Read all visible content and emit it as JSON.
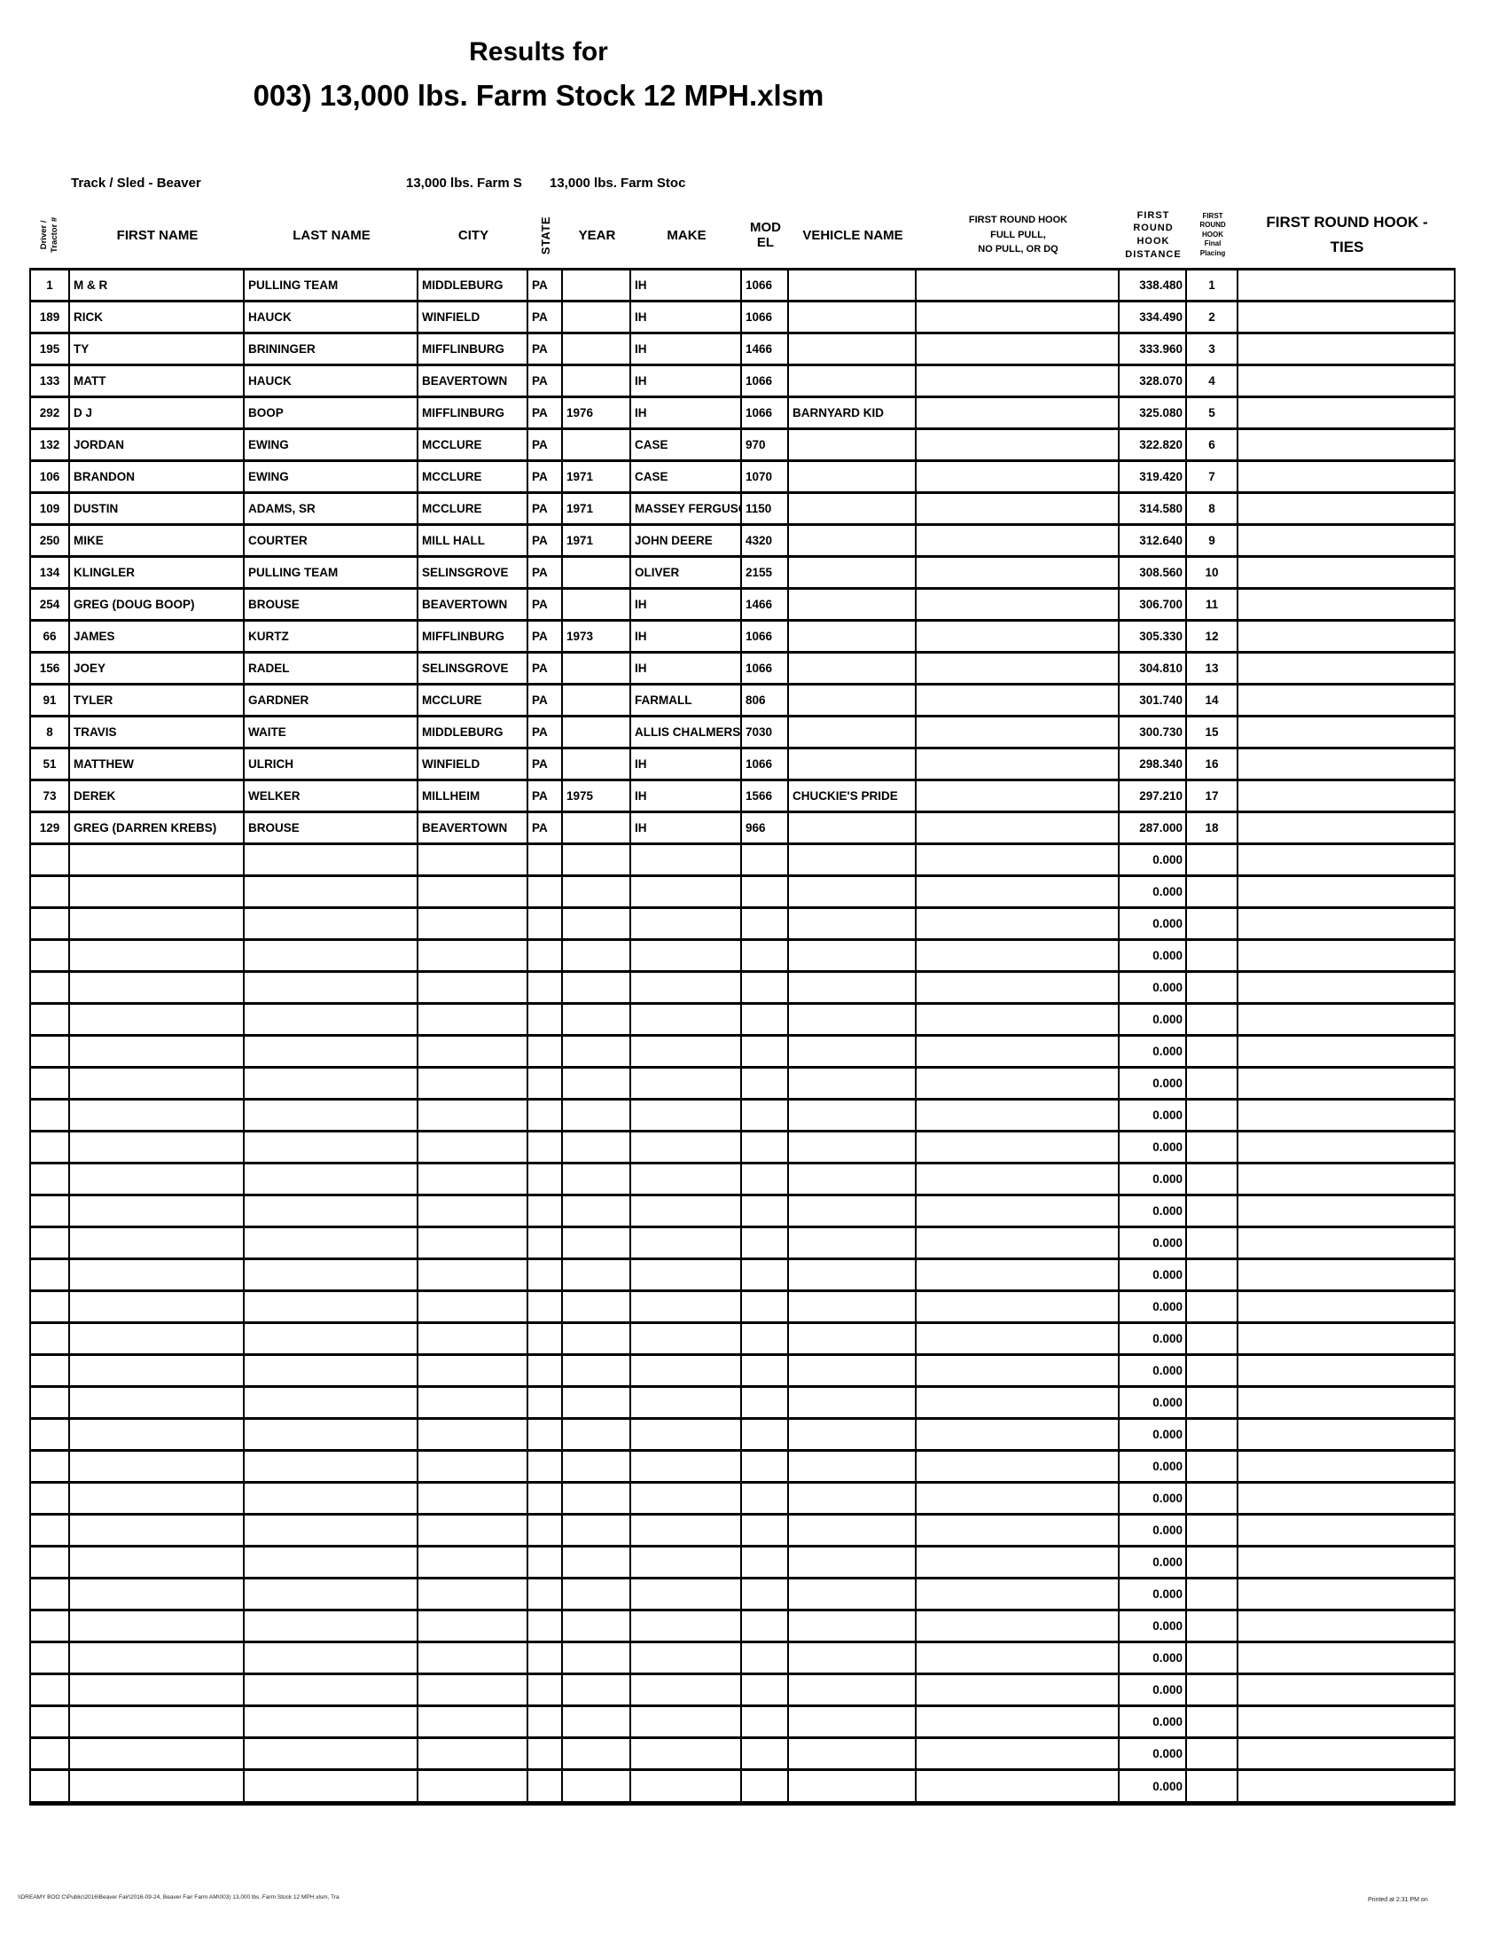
{
  "title": {
    "line1": "Results for",
    "line2": "003) 13,000 lbs. Farm Stock 12 MPH.xlsm"
  },
  "info": {
    "track_sled": "Track / Sled - Beaver",
    "class_cell_1": "13,000 lbs. Farm S",
    "class_cell_2": "13,000 lbs. Farm Stoc"
  },
  "table": {
    "headers": {
      "driver_line1": "Driver /",
      "driver_line2": "Tractor #",
      "first_name": "FIRST NAME",
      "last_name": "LAST NAME",
      "city": "CITY",
      "state": "STATE",
      "year": "YEAR",
      "make": "MAKE",
      "model_line1": "MOD",
      "model_line2": "EL",
      "vehicle_name": "VEHICLE NAME",
      "full_pull_line1": "FIRST ROUND HOOK",
      "full_pull_line2": "FULL PULL,",
      "full_pull_line3": "NO PULL, OR DQ",
      "distance_line1": "FIRST",
      "distance_line2": "ROUND",
      "distance_line3": "HOOK",
      "distance_line4": "DISTANCE",
      "placing_line1": "FIRST",
      "placing_line2": "ROUND",
      "placing_line3": "HOOK",
      "placing_line4": "Final",
      "placing_line5": "Placing",
      "ties_line1": "FIRST ROUND HOOK -",
      "ties_line2": "TIES"
    },
    "rows": [
      {
        "num": "1",
        "first": "M & R",
        "last": "PULLING TEAM",
        "city": "MIDDLEBURG",
        "state": "PA",
        "year": "",
        "make": "IH",
        "model": "1066",
        "vehicle": "",
        "full_pull": "",
        "distance": "338.480",
        "placing": "1",
        "ties": ""
      },
      {
        "num": "189",
        "first": "RICK",
        "last": "HAUCK",
        "city": "WINFIELD",
        "state": "PA",
        "year": "",
        "make": "IH",
        "model": "1066",
        "vehicle": "",
        "full_pull": "",
        "distance": "334.490",
        "placing": "2",
        "ties": ""
      },
      {
        "num": "195",
        "first": "TY",
        "last": "BRININGER",
        "city": "MIFFLINBURG",
        "state": "PA",
        "year": "",
        "make": "IH",
        "model": "1466",
        "vehicle": "",
        "full_pull": "",
        "distance": "333.960",
        "placing": "3",
        "ties": ""
      },
      {
        "num": "133",
        "first": "MATT",
        "last": "HAUCK",
        "city": "BEAVERTOWN",
        "state": "PA",
        "year": "",
        "make": "IH",
        "model": "1066",
        "vehicle": "",
        "full_pull": "",
        "distance": "328.070",
        "placing": "4",
        "ties": ""
      },
      {
        "num": "292",
        "first": "D J",
        "last": "BOOP",
        "city": "MIFFLINBURG",
        "state": "PA",
        "year": "1976",
        "make": "IH",
        "model": "1066",
        "vehicle": "BARNYARD KID",
        "full_pull": "",
        "distance": "325.080",
        "placing": "5",
        "ties": ""
      },
      {
        "num": "132",
        "first": "JORDAN",
        "last": "EWING",
        "city": "MCCLURE",
        "state": "PA",
        "year": "",
        "make": "CASE",
        "model": "970",
        "vehicle": "",
        "full_pull": "",
        "distance": "322.820",
        "placing": "6",
        "ties": ""
      },
      {
        "num": "106",
        "first": "BRANDON",
        "last": "EWING",
        "city": "MCCLURE",
        "state": "PA",
        "year": "1971",
        "make": "CASE",
        "model": "1070",
        "vehicle": "",
        "full_pull": "",
        "distance": "319.420",
        "placing": "7",
        "ties": ""
      },
      {
        "num": "109",
        "first": "DUSTIN",
        "last": "ADAMS, SR",
        "city": "MCCLURE",
        "state": "PA",
        "year": "1971",
        "make": "MASSEY FERGUSON",
        "model": "1150",
        "vehicle": "",
        "full_pull": "",
        "distance": "314.580",
        "placing": "8",
        "ties": ""
      },
      {
        "num": "250",
        "first": "MIKE",
        "last": "COURTER",
        "city": "MILL HALL",
        "state": "PA",
        "year": "1971",
        "make": "JOHN DEERE",
        "model": "4320",
        "vehicle": "",
        "full_pull": "",
        "distance": "312.640",
        "placing": "9",
        "ties": ""
      },
      {
        "num": "134",
        "first": "KLINGLER",
        "last": "PULLING TEAM",
        "city": "SELINSGROVE",
        "state": "PA",
        "year": "",
        "make": "OLIVER",
        "model": "2155",
        "vehicle": "",
        "full_pull": "",
        "distance": "308.560",
        "placing": "10",
        "ties": ""
      },
      {
        "num": "254",
        "first": "GREG (DOUG BOOP)",
        "last": "BROUSE",
        "city": "BEAVERTOWN",
        "state": "PA",
        "year": "",
        "make": "IH",
        "model": "1466",
        "vehicle": "",
        "full_pull": "",
        "distance": "306.700",
        "placing": "11",
        "ties": ""
      },
      {
        "num": "66",
        "first": "JAMES",
        "last": "KURTZ",
        "city": "MIFFLINBURG",
        "state": "PA",
        "year": "1973",
        "make": "IH",
        "model": "1066",
        "vehicle": "",
        "full_pull": "",
        "distance": "305.330",
        "placing": "12",
        "ties": ""
      },
      {
        "num": "156",
        "first": "JOEY",
        "last": "RADEL",
        "city": "SELINSGROVE",
        "state": "PA",
        "year": "",
        "make": "IH",
        "model": "1066",
        "vehicle": "",
        "full_pull": "",
        "distance": "304.810",
        "placing": "13",
        "ties": ""
      },
      {
        "num": "91",
        "first": "TYLER",
        "last": "GARDNER",
        "city": "MCCLURE",
        "state": "PA",
        "year": "",
        "make": "FARMALL",
        "model": "806",
        "vehicle": "",
        "full_pull": "",
        "distance": "301.740",
        "placing": "14",
        "ties": ""
      },
      {
        "num": "8",
        "first": "TRAVIS",
        "last": "WAITE",
        "city": "MIDDLEBURG",
        "state": "PA",
        "year": "",
        "make": "ALLIS CHALMERS",
        "model": "7030",
        "vehicle": "",
        "full_pull": "",
        "distance": "300.730",
        "placing": "15",
        "ties": ""
      },
      {
        "num": "51",
        "first": "MATTHEW",
        "last": "ULRICH",
        "city": "WINFIELD",
        "state": "PA",
        "year": "",
        "make": "IH",
        "model": "1066",
        "vehicle": "",
        "full_pull": "",
        "distance": "298.340",
        "placing": "16",
        "ties": ""
      },
      {
        "num": "73",
        "first": "DEREK",
        "last": "WELKER",
        "city": "MILLHEIM",
        "state": "PA",
        "year": "1975",
        "make": "IH",
        "model": "1566",
        "vehicle": "CHUCKIE'S PRIDE",
        "full_pull": "",
        "distance": "297.210",
        "placing": "17",
        "ties": ""
      },
      {
        "num": "129",
        "first": "GREG (DARREN KREBS)",
        "last": "BROUSE",
        "city": "BEAVERTOWN",
        "state": "PA",
        "year": "",
        "make": "IH",
        "model": "966",
        "vehicle": "",
        "full_pull": "",
        "distance": "287.000",
        "placing": "18",
        "ties": ""
      }
    ],
    "empty_rows": {
      "count": 30,
      "distance": "0.000"
    }
  },
  "footer": {
    "left": "\\\\DREAMY BOO C\\Public\\2016\\Beaver Fair\\2016-09-24, Beaver Fair Farm AM\\003) 13,000 lbs. Farm Stock 12 MPH.xlsm, Tra",
    "right": "Printed at 2:31 PM on"
  }
}
